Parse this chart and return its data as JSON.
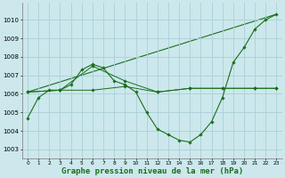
{
  "background_color": "#cce8ec",
  "grid_color": "#aad0d8",
  "line_color": "#1a6e1a",
  "xlabel": "Graphe pression niveau de la mer (hPa)",
  "xlim": [
    -0.5,
    23.5
  ],
  "ylim": [
    1002.5,
    1010.9
  ],
  "yticks": [
    1003,
    1004,
    1005,
    1006,
    1007,
    1008,
    1009,
    1010
  ],
  "xticks": [
    0,
    1,
    2,
    3,
    4,
    5,
    6,
    7,
    8,
    9,
    10,
    11,
    12,
    13,
    14,
    15,
    16,
    17,
    18,
    19,
    20,
    21,
    22,
    23
  ],
  "series": [
    {
      "x": [
        0,
        1,
        2,
        3,
        4,
        5,
        6,
        7,
        8,
        9,
        10,
        11,
        12,
        13,
        14,
        15,
        16,
        17,
        18,
        19,
        20,
        21,
        22,
        23
      ],
      "y": [
        1004.7,
        1005.8,
        1006.2,
        1006.2,
        1006.5,
        1007.3,
        1007.6,
        1007.4,
        1006.7,
        1006.5,
        1006.1,
        1005.0,
        1004.1,
        1003.8,
        1003.5,
        1003.4,
        1003.8,
        1004.5,
        1005.8,
        1007.7,
        1008.5,
        1009.5,
        1010.0,
        1010.3
      ]
    },
    {
      "x": [
        0,
        3,
        6,
        9,
        12,
        15,
        18,
        21,
        23
      ],
      "y": [
        1006.1,
        1006.2,
        1006.2,
        1006.4,
        1006.1,
        1006.3,
        1006.3,
        1006.3,
        1006.3
      ]
    },
    {
      "x": [
        0,
        3,
        6,
        9,
        12,
        15,
        18,
        21,
        23
      ],
      "y": [
        1006.1,
        1006.2,
        1007.5,
        1006.7,
        1006.1,
        1006.3,
        1006.3,
        1006.3,
        1006.3
      ]
    },
    {
      "x": [
        0,
        23
      ],
      "y": [
        1006.1,
        1010.3
      ]
    }
  ]
}
